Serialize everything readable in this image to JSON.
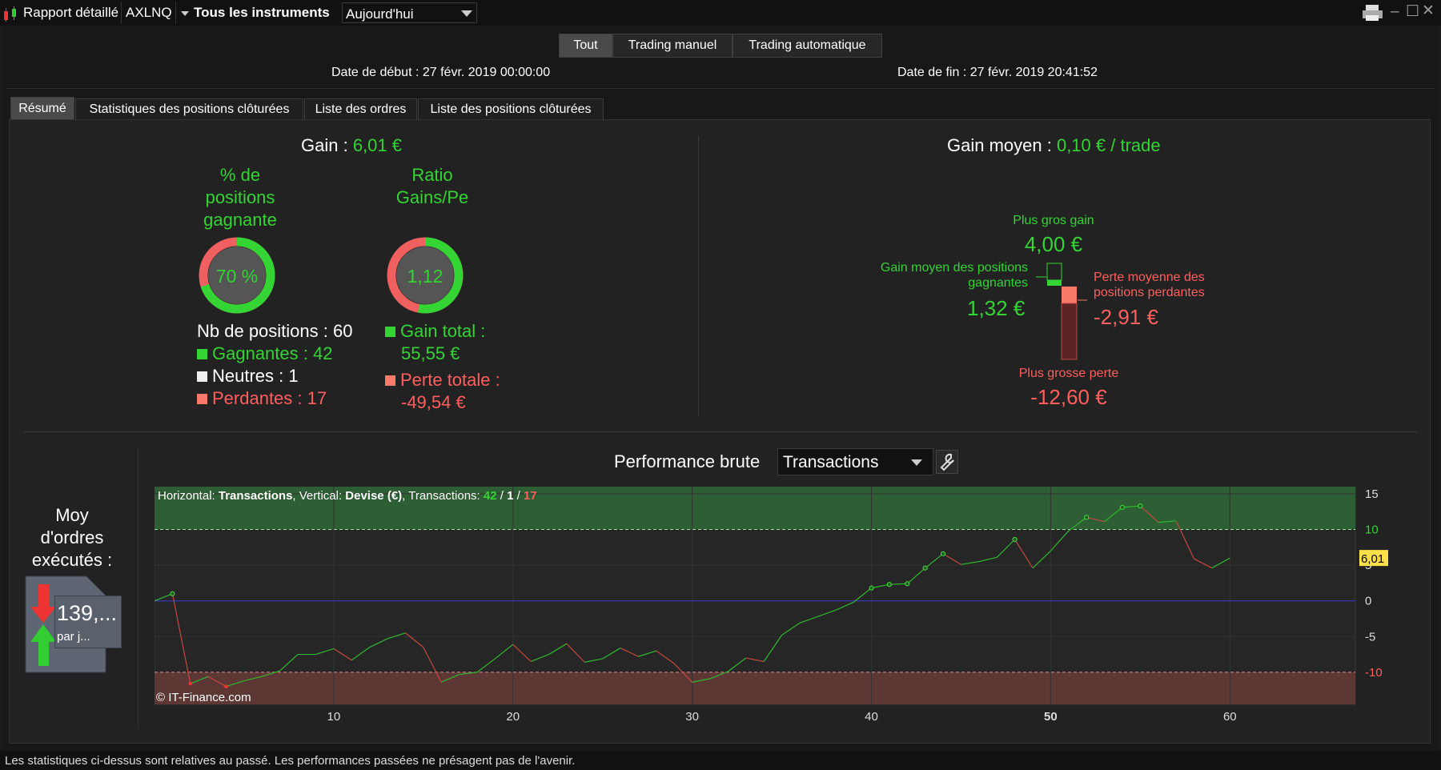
{
  "titlebar": {
    "report_label": "Rapport détaillé",
    "symbol": "AXLNQ",
    "instruments": "Tous les instruments",
    "period": "Aujourd'hui"
  },
  "modes": [
    "Tout",
    "Trading manuel",
    "Trading automatique"
  ],
  "dates": {
    "start": "Date de début : 27 févr. 2019 00:00:00",
    "end": "Date de fin : 27 févr. 2019 20:41:52"
  },
  "tabs": [
    "Résumé",
    "Statistiques des positions clôturées",
    "Liste des ordres",
    "Liste des positions clôturées"
  ],
  "summary": {
    "gain_label": "Gain : ",
    "gain_value": "6,01 €",
    "win_pct_title": [
      "% de",
      "positions",
      "gagnante"
    ],
    "win_pct_value": "70 %",
    "win_pct": 0.7,
    "ratio_title": [
      "Ratio",
      "Gains/Pe"
    ],
    "ratio_value": "1,12",
    "ratio_fraction": 0.53,
    "nb_positions": "Nb de positions : 60",
    "winners": "Gagnantes : 42",
    "neutral": "Neutres : 1",
    "losers": "Perdantes : 17",
    "gain_total_label": "Gain total :",
    "gain_total_value": "55,55 €",
    "loss_total_label": "Perte totale :",
    "loss_total_value": "-49,54 €",
    "avg_gain_label": "Gain moyen : ",
    "avg_gain_value": "0,10 € / trade",
    "max_gain_label": "Plus gros gain",
    "max_gain_value": "4,00 €",
    "avg_win_label": [
      "Gain moyen des positions",
      "gagnantes"
    ],
    "avg_win_value": "1,32 €",
    "avg_loss_label": [
      "Perte moyenne des",
      "positions perdantes"
    ],
    "avg_loss_value": "-2,91 €",
    "max_loss_label": "Plus grosse perte",
    "max_loss_value": "-12,60 €"
  },
  "orders": {
    "title": [
      "Moy",
      "d'ordres",
      "exécutés :"
    ],
    "value": "139,...",
    "sub": "par j..."
  },
  "performance": {
    "title": "Performance brute",
    "selector": "Transactions"
  },
  "chart_data": {
    "type": "line",
    "legend_prefix": "Horizontal: ",
    "legend_h": "Transactions",
    "legend_mid": ", Vertical: ",
    "legend_v": "Devise (€)",
    "legend_tx": ", Transactions: ",
    "legend_counts": [
      "42",
      "1",
      "17"
    ],
    "watermark": "© IT-Finance.com",
    "xlim": [
      0,
      67
    ],
    "ylim": [
      -14.5,
      16
    ],
    "x_ticks": [
      10,
      20,
      30,
      40,
      50,
      60
    ],
    "y_ticks": [
      15,
      10,
      5,
      0,
      -5,
      -10
    ],
    "upper_band": 10,
    "lower_band": -10,
    "last_value_label": "6,01",
    "last_value": 6.01,
    "x": [
      0,
      1,
      2,
      3,
      4,
      5,
      6,
      7,
      8,
      9,
      10,
      11,
      12,
      13,
      14,
      15,
      16,
      17,
      18,
      19,
      20,
      21,
      22,
      23,
      24,
      25,
      26,
      27,
      28,
      29,
      30,
      31,
      32,
      33,
      34,
      35,
      36,
      37,
      38,
      39,
      40,
      41,
      42,
      43,
      44,
      45,
      46,
      47,
      48,
      49,
      50,
      51,
      52,
      53,
      54,
      55,
      56,
      57,
      58,
      59,
      60
    ],
    "y": [
      0,
      1,
      -11.6,
      -10.6,
      -12.0,
      -11.2,
      -10.6,
      -9.8,
      -7.5,
      -7.5,
      -6.7,
      -8.3,
      -6.5,
      -5.3,
      -4.5,
      -6.5,
      -11.4,
      -10.3,
      -10.0,
      -8.1,
      -6.1,
      -8.5,
      -7.5,
      -6.0,
      -8.6,
      -8.1,
      -6.6,
      -7.8,
      -7.0,
      -8.8,
      -11.4,
      -10.9,
      -9.9,
      -8.0,
      -8.5,
      -4.8,
      -3.1,
      -2.2,
      -1.3,
      -0.2,
      1.8,
      2.3,
      2.4,
      4.6,
      6.6,
      5.1,
      5.5,
      6.1,
      8.6,
      4.6,
      7.0,
      9.8,
      11.7,
      11.1,
      13.1,
      13.3,
      11.0,
      11.2,
      5.9,
      4.6,
      6.0
    ],
    "win_points": [
      1,
      40,
      41,
      42,
      43,
      44,
      48,
      52,
      54,
      55
    ],
    "loss_points": [
      2,
      4
    ]
  },
  "footer": "Les statistiques ci-dessus sont relatives au passé. Les performances passées ne présagent pas de l'avenir.",
  "colors": {
    "green": "#33d433",
    "red": "#ff5e5e",
    "green_band": "#2e5e33",
    "red_band": "#5c3734"
  }
}
